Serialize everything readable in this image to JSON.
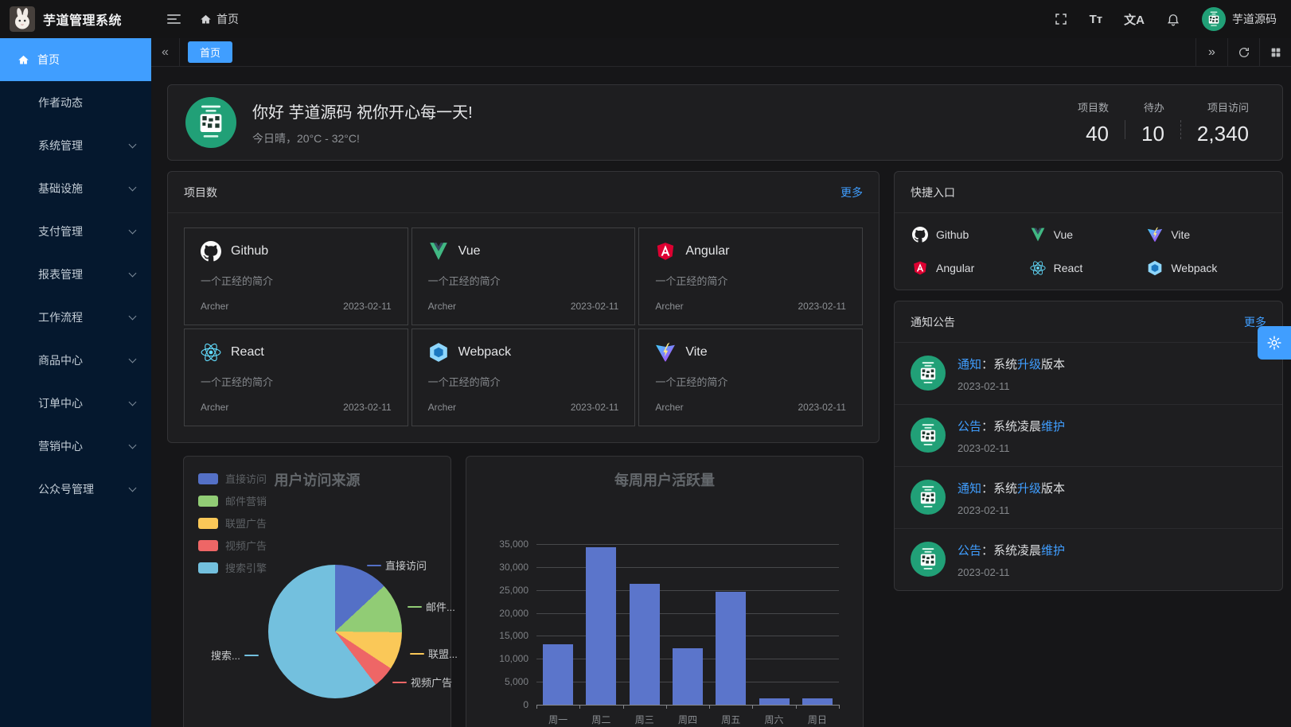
{
  "app": {
    "title": "芋道管理系统",
    "breadcrumb_home": "首页",
    "username": "芋道源码"
  },
  "topbar": {
    "font_icon_text": "Tт",
    "locale_icon_text": "文A"
  },
  "sidebar": {
    "items": [
      {
        "label": "首页",
        "icon": "home-icon",
        "active": true,
        "expandable": false
      },
      {
        "label": "作者动态",
        "active": false,
        "expandable": false
      },
      {
        "label": "系统管理",
        "active": false,
        "expandable": true
      },
      {
        "label": "基础设施",
        "active": false,
        "expandable": true
      },
      {
        "label": "支付管理",
        "active": false,
        "expandable": true
      },
      {
        "label": "报表管理",
        "active": false,
        "expandable": true
      },
      {
        "label": "工作流程",
        "active": false,
        "expandable": true
      },
      {
        "label": "商品中心",
        "active": false,
        "expandable": true
      },
      {
        "label": "订单中心",
        "active": false,
        "expandable": true
      },
      {
        "label": "营销中心",
        "active": false,
        "expandable": true
      },
      {
        "label": "公众号管理",
        "active": false,
        "expandable": true
      }
    ]
  },
  "tabs": {
    "items": [
      {
        "label": "首页",
        "active": true
      }
    ]
  },
  "welcome": {
    "greeting": "你好 芋道源码 祝你开心每一天!",
    "weather": "今日晴，20°C - 32°C!",
    "stats": [
      {
        "label": "项目数",
        "value": "40"
      },
      {
        "label": "待办",
        "value": "10"
      },
      {
        "label": "项目访问",
        "value": "2,340"
      }
    ]
  },
  "projects": {
    "title": "项目数",
    "more": "更多",
    "items": [
      {
        "name": "Github",
        "icon": "github-icon",
        "desc": "一个正经的简介",
        "author": "Archer",
        "date": "2023-02-11"
      },
      {
        "name": "Vue",
        "icon": "vue-icon",
        "desc": "一个正经的简介",
        "author": "Archer",
        "date": "2023-02-11"
      },
      {
        "name": "Angular",
        "icon": "angular-icon",
        "desc": "一个正经的简介",
        "author": "Archer",
        "date": "2023-02-11"
      },
      {
        "name": "React",
        "icon": "react-icon",
        "desc": "一个正经的简介",
        "author": "Archer",
        "date": "2023-02-11"
      },
      {
        "name": "Webpack",
        "icon": "webpack-icon",
        "desc": "一个正经的简介",
        "author": "Archer",
        "date": "2023-02-11"
      },
      {
        "name": "Vite",
        "icon": "vite-icon",
        "desc": "一个正经的简介",
        "author": "Archer",
        "date": "2023-02-11"
      }
    ]
  },
  "shortcuts": {
    "title": "快捷入口",
    "items": [
      {
        "label": "Github",
        "icon": "github-icon"
      },
      {
        "label": "Vue",
        "icon": "vue-icon"
      },
      {
        "label": "Vite",
        "icon": "vite-icon"
      },
      {
        "label": "Angular",
        "icon": "angular-icon"
      },
      {
        "label": "React",
        "icon": "react-icon"
      },
      {
        "label": "Webpack",
        "icon": "webpack-icon"
      }
    ]
  },
  "notices": {
    "title": "通知公告",
    "more": "更多",
    "items": [
      {
        "parts": [
          {
            "text": "通知",
            "highlight": true
          },
          {
            "text": "：系统",
            "highlight": false
          },
          {
            "text": "升级",
            "highlight": true
          },
          {
            "text": "版本",
            "highlight": false
          }
        ],
        "date": "2023-02-11"
      },
      {
        "parts": [
          {
            "text": "公告",
            "highlight": true
          },
          {
            "text": "：系统凌晨",
            "highlight": false
          },
          {
            "text": "维护",
            "highlight": true
          }
        ],
        "date": "2023-02-11"
      },
      {
        "parts": [
          {
            "text": "通知",
            "highlight": true
          },
          {
            "text": "：系统",
            "highlight": false
          },
          {
            "text": "升级",
            "highlight": true
          },
          {
            "text": "版本",
            "highlight": false
          }
        ],
        "date": "2023-02-11"
      },
      {
        "parts": [
          {
            "text": "公告",
            "highlight": true
          },
          {
            "text": "：系统凌晨",
            "highlight": false
          },
          {
            "text": "维护",
            "highlight": true
          }
        ],
        "date": "2023-02-11"
      }
    ]
  },
  "chart_data": [
    {
      "type": "pie",
      "title": "用户访问来源",
      "series": [
        {
          "name": "直接访问",
          "value": 335
        },
        {
          "name": "邮件营销",
          "value": 310
        },
        {
          "name": "联盟广告",
          "value": 234
        },
        {
          "name": "视频广告",
          "value": 135
        },
        {
          "name": "搜索引擎",
          "value": 1548
        }
      ],
      "callout_labels": [
        "直接访问",
        "邮件...",
        "联盟...",
        "视频广告",
        "搜索..."
      ],
      "colors": [
        "#5470c6",
        "#91cc75",
        "#fac858",
        "#ee6666",
        "#73c0de"
      ],
      "legend_position": "top-left"
    },
    {
      "type": "bar",
      "title": "每周用户活跃量",
      "categories": [
        "周一",
        "周二",
        "周三",
        "周四",
        "周五",
        "周六",
        "周日"
      ],
      "values": [
        13253,
        34235,
        26321,
        12340,
        24643,
        1322,
        1324
      ],
      "ylim": [
        0,
        35000
      ],
      "ytick_step": 5000,
      "bar_color": "#5b75cb",
      "grid": true
    }
  ],
  "colors": {
    "accent": "#409eff",
    "sidebar_bg": "#05182e",
    "card_bg": "#1e1e20",
    "avatar_green": "#21a077"
  }
}
